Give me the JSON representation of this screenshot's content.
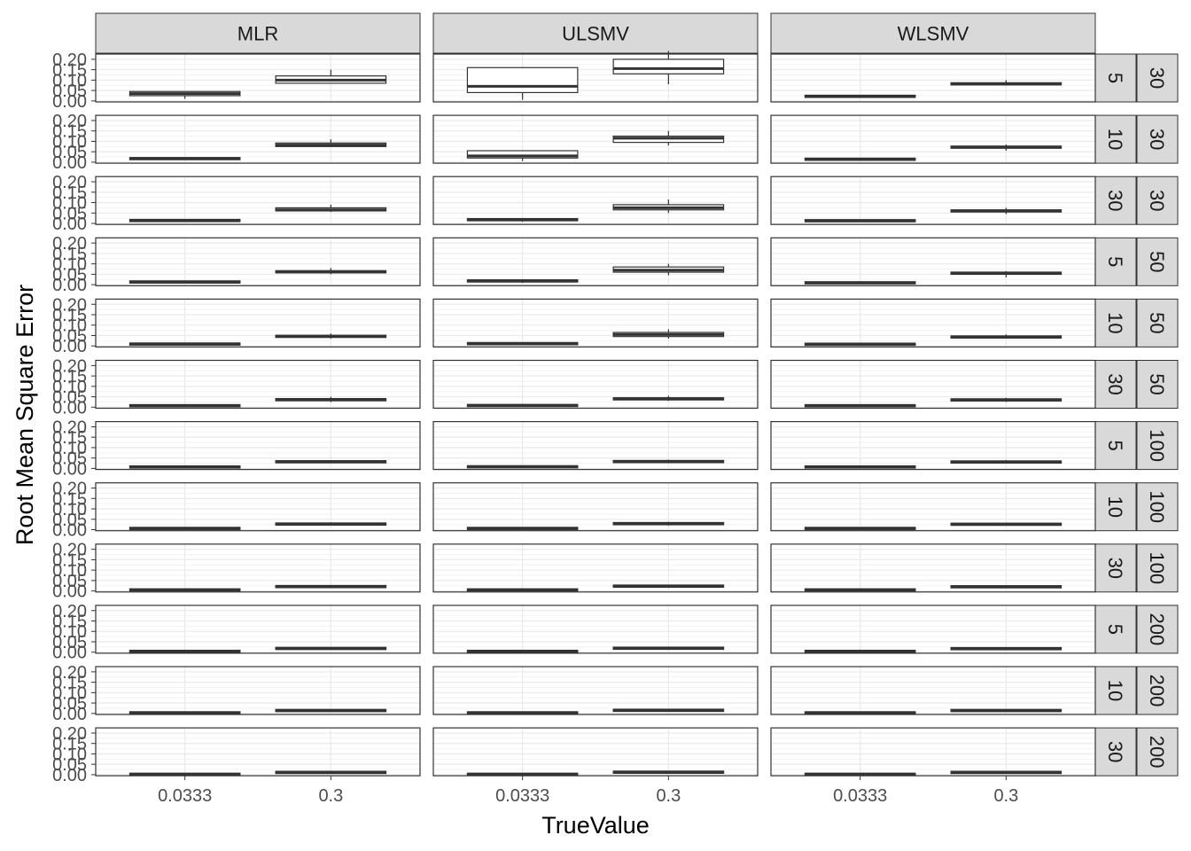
{
  "chart_data": {
    "type": "box",
    "facet_columns": [
      "MLR",
      "ULSMV",
      "WLSMV"
    ],
    "facet_rows": [
      {
        "inner": "5",
        "outer": "30"
      },
      {
        "inner": "10",
        "outer": "30"
      },
      {
        "inner": "30",
        "outer": "30"
      },
      {
        "inner": "5",
        "outer": "50"
      },
      {
        "inner": "10",
        "outer": "50"
      },
      {
        "inner": "30",
        "outer": "50"
      },
      {
        "inner": "5",
        "outer": "100"
      },
      {
        "inner": "10",
        "outer": "100"
      },
      {
        "inner": "30",
        "outer": "100"
      },
      {
        "inner": "5",
        "outer": "200"
      },
      {
        "inner": "10",
        "outer": "200"
      },
      {
        "inner": "30",
        "outer": "200"
      }
    ],
    "categories": [
      "0.0333",
      "0.3"
    ],
    "xlabel": "TrueValue",
    "ylabel": "Root Mean Square Error",
    "ylim": [
      -0.005,
      0.225
    ],
    "yticks": [
      0.0,
      0.05,
      0.1,
      0.15,
      0.2
    ],
    "ytick_labels": [
      "0.00",
      "0.05",
      "0.10",
      "0.15",
      "0.20"
    ],
    "grid": true,
    "boxes": [
      [
        [
          [
            0.01,
            0.025,
            0.035,
            0.045
          ],
          [
            0.1,
            0.085,
            0.1,
            0.12,
            0.15
          ]
        ],
        [
          [
            0.005,
            0.04,
            0.07,
            0.16
          ],
          [
            0.08,
            0.13,
            0.155,
            0.2,
            0.24
          ]
        ],
        [
          [
            0.015,
            0.02,
            0.022,
            0.025
          ],
          [
            0.075,
            0.08,
            0.082,
            0.085,
            0.1
          ]
        ]
      ],
      [
        [
          [
            0.01,
            0.015,
            0.017,
            0.022
          ],
          [
            0.08,
            0.075,
            0.082,
            0.092,
            0.11
          ]
        ],
        [
          [
            0.005,
            0.02,
            0.03,
            0.055
          ],
          [
            0.08,
            0.095,
            0.115,
            0.125,
            0.15
          ]
        ],
        [
          [
            0.008,
            0.012,
            0.014,
            0.016
          ],
          [
            0.055,
            0.068,
            0.072,
            0.075,
            0.085
          ]
        ]
      ],
      [
        [
          [
            0.008,
            0.012,
            0.014,
            0.016
          ],
          [
            0.055,
            0.06,
            0.065,
            0.075,
            0.09
          ]
        ],
        [
          [
            0.008,
            0.014,
            0.018,
            0.022
          ],
          [
            0.05,
            0.065,
            0.075,
            0.09,
            0.115
          ]
        ],
        [
          [
            0.008,
            0.011,
            0.013,
            0.015
          ],
          [
            0.045,
            0.055,
            0.06,
            0.065,
            0.075
          ]
        ]
      ],
      [
        [
          [
            0.008,
            0.011,
            0.013,
            0.015
          ],
          [
            0.05,
            0.058,
            0.062,
            0.066,
            0.08
          ]
        ],
        [
          [
            0.008,
            0.014,
            0.018,
            0.022
          ],
          [
            0.045,
            0.06,
            0.07,
            0.085,
            0.1
          ]
        ],
        [
          [
            0.005,
            0.008,
            0.009,
            0.011
          ],
          [
            0.035,
            0.05,
            0.055,
            0.06,
            0.065
          ]
        ]
      ],
      [
        [
          [
            0.005,
            0.008,
            0.009,
            0.011
          ],
          [
            0.035,
            0.042,
            0.046,
            0.05,
            0.06
          ]
        ],
        [
          [
            0.005,
            0.009,
            0.011,
            0.013
          ],
          [
            0.035,
            0.045,
            0.055,
            0.065,
            0.08
          ]
        ],
        [
          [
            0.005,
            0.007,
            0.008,
            0.01
          ],
          [
            0.035,
            0.04,
            0.043,
            0.046,
            0.055
          ]
        ]
      ],
      [
        [
          [
            0.004,
            0.006,
            0.007,
            0.009
          ],
          [
            0.025,
            0.032,
            0.036,
            0.04,
            0.05
          ]
        ],
        [
          [
            0.004,
            0.007,
            0.008,
            0.01
          ],
          [
            0.03,
            0.036,
            0.04,
            0.045,
            0.055
          ]
        ],
        [
          [
            0.004,
            0.006,
            0.007,
            0.009
          ],
          [
            0.025,
            0.032,
            0.035,
            0.038,
            0.045
          ]
        ]
      ],
      [
        [
          [
            0.004,
            0.006,
            0.007,
            0.009
          ],
          [
            0.025,
            0.029,
            0.032,
            0.035,
            0.04
          ]
        ],
        [
          [
            0.004,
            0.007,
            0.008,
            0.01
          ],
          [
            0.025,
            0.03,
            0.033,
            0.036,
            0.042
          ]
        ],
        [
          [
            0.004,
            0.006,
            0.007,
            0.008
          ],
          [
            0.025,
            0.028,
            0.031,
            0.034,
            0.04
          ]
        ]
      ],
      [
        [
          [
            0.003,
            0.005,
            0.006,
            0.007
          ],
          [
            0.02,
            0.024,
            0.027,
            0.03,
            0.035
          ]
        ],
        [
          [
            0.003,
            0.005,
            0.006,
            0.008
          ],
          [
            0.02,
            0.025,
            0.029,
            0.032,
            0.038
          ]
        ],
        [
          [
            0.003,
            0.005,
            0.006,
            0.007
          ],
          [
            0.02,
            0.023,
            0.026,
            0.029,
            0.034
          ]
        ]
      ],
      [
        [
          [
            0.003,
            0.004,
            0.005,
            0.006
          ],
          [
            0.015,
            0.019,
            0.021,
            0.023,
            0.028
          ]
        ],
        [
          [
            0.003,
            0.004,
            0.005,
            0.006
          ],
          [
            0.015,
            0.02,
            0.023,
            0.026,
            0.03
          ]
        ],
        [
          [
            0.003,
            0.004,
            0.005,
            0.006
          ],
          [
            0.015,
            0.018,
            0.02,
            0.023,
            0.027
          ]
        ]
      ],
      [
        [
          [
            0.002,
            0.003,
            0.004,
            0.005
          ],
          [
            0.013,
            0.016,
            0.018,
            0.02,
            0.024
          ]
        ],
        [
          [
            0.002,
            0.003,
            0.004,
            0.005
          ],
          [
            0.013,
            0.017,
            0.019,
            0.021,
            0.025
          ]
        ],
        [
          [
            0.002,
            0.003,
            0.004,
            0.005
          ],
          [
            0.012,
            0.015,
            0.017,
            0.019,
            0.023
          ]
        ]
      ],
      [
        [
          [
            0.002,
            0.003,
            0.003,
            0.004
          ],
          [
            0.01,
            0.012,
            0.014,
            0.016,
            0.02
          ]
        ],
        [
          [
            0.002,
            0.003,
            0.003,
            0.004
          ],
          [
            0.01,
            0.013,
            0.015,
            0.017,
            0.021
          ]
        ],
        [
          [
            0.002,
            0.003,
            0.003,
            0.004
          ],
          [
            0.01,
            0.012,
            0.014,
            0.016,
            0.02
          ]
        ]
      ],
      [
        [
          [
            0.001,
            0.002,
            0.002,
            0.003
          ],
          [
            0.008,
            0.01,
            0.011,
            0.013,
            0.016
          ]
        ],
        [
          [
            0.001,
            0.002,
            0.002,
            0.003
          ],
          [
            0.008,
            0.01,
            0.012,
            0.014,
            0.017
          ]
        ],
        [
          [
            0.001,
            0.002,
            0.002,
            0.003
          ],
          [
            0.008,
            0.01,
            0.011,
            0.013,
            0.016
          ]
        ]
      ]
    ]
  }
}
